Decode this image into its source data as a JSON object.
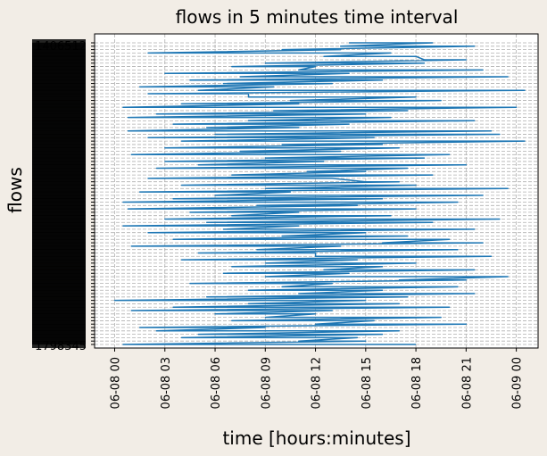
{
  "figure": {
    "background": "#f2ede6",
    "axes_background": "#ffffff"
  },
  "chart_data": {
    "type": "line",
    "title": "flows in 5 minutes time interval",
    "xlabel": "time [hours:minutes]",
    "ylabel": "flows",
    "x_tick_labels": [
      "06-08 00",
      "06-08 03",
      "06-08 06",
      "06-08 09",
      "06-08 12",
      "06-08 15",
      "06-08 18",
      "06-08 21",
      "06-09 00"
    ],
    "x_tick_hours": [
      0,
      3,
      6,
      9,
      12,
      15,
      18,
      21,
      24
    ],
    "xlim_hours": [
      -1.2,
      25.3
    ],
    "y_tick_labels_visible": [
      "1406512",
      "1798345"
    ],
    "y_flow_count": 90,
    "grid": true,
    "line_color": "#1f77b4",
    "series": [
      {
        "values": [
          [
            14.0,
            19.0
          ],
          [
            13.5,
            21.5
          ],
          [
            10.0,
            13.5
          ],
          [
            2.0,
            16.5
          ],
          [
            12.5,
            18.0
          ],
          [
            18.5,
            21.0
          ],
          [
            9.0,
            18.5
          ],
          [
            7.0,
            12.0
          ],
          [
            11.0,
            22.0
          ],
          [
            3.0,
            14.0
          ],
          [
            7.5,
            23.5
          ],
          [
            4.5,
            16.0
          ],
          [
            6.5,
            13.0
          ],
          [
            1.5,
            9.5
          ],
          [
            5.0,
            24.5
          ],
          [
            2.0,
            8.0
          ],
          [
            8.0,
            18.0
          ],
          [
            10.5,
            19.5
          ],
          [
            4.0,
            11.0
          ],
          [
            0.5,
            24.0
          ],
          [
            9.5,
            17.5
          ],
          [
            2.5,
            15.0
          ],
          [
            0.8,
            16.5
          ],
          [
            8.0,
            21.5
          ],
          [
            3.5,
            14.0
          ],
          [
            5.5,
            11.0
          ],
          [
            0.8,
            22.5
          ],
          [
            6.0,
            23.0
          ],
          [
            2.0,
            15.5
          ],
          [
            4.0,
            24.5
          ],
          [
            10.0,
            16.0
          ],
          [
            3.0,
            17.0
          ],
          [
            7.5,
            13.5
          ],
          [
            1.0,
            20.0
          ],
          [
            9.0,
            18.5
          ],
          [
            3.0,
            12.5
          ],
          [
            5.0,
            21.0
          ],
          [
            2.5,
            17.5
          ],
          [
            11.5,
            15.0
          ],
          [
            7.0,
            19.0
          ],
          [
            2.0,
            13.0
          ],
          [
            15.0,
            17.0
          ],
          [
            4.0,
            18.0
          ],
          [
            9.0,
            23.5
          ],
          [
            1.5,
            10.5
          ],
          [
            6.0,
            22.0
          ],
          [
            3.5,
            16.0
          ],
          [
            0.5,
            20.5
          ],
          [
            8.5,
            14.5
          ],
          [
            0.8,
            18.0
          ],
          [
            4.5,
            11.0
          ],
          [
            7.0,
            16.5
          ],
          [
            3.0,
            23.0
          ],
          [
            5.5,
            19.0
          ],
          [
            0.5,
            11.0
          ],
          [
            6.5,
            21.5
          ],
          [
            2.0,
            15.0
          ],
          [
            10.0,
            17.5
          ],
          [
            3.5,
            20.0
          ],
          [
            16.0,
            22.0
          ],
          [
            1.0,
            13.5
          ],
          [
            8.5,
            20.5
          ],
          [
            5.0,
            12.0
          ],
          [
            12.0,
            22.5
          ],
          [
            4.0,
            14.5
          ],
          [
            9.0,
            18.0
          ],
          [
            7.0,
            16.0
          ],
          [
            12.5,
            21.5
          ],
          [
            6.5,
            14.0
          ],
          [
            9.0,
            23.5
          ],
          [
            17.0,
            21.0
          ],
          [
            4.5,
            13.0
          ],
          [
            10.0,
            20.5
          ],
          [
            8.0,
            16.0
          ],
          [
            11.0,
            21.5
          ],
          [
            5.5,
            17.5
          ],
          [
            0.0,
            15.0
          ],
          [
            8.0,
            17.0
          ],
          [
            3.5,
            20.0
          ],
          [
            1.0,
            13.0
          ],
          [
            6.0,
            12.0
          ],
          [
            9.0,
            19.5
          ],
          [
            7.0,
            15.5
          ],
          [
            12.0,
            21.0
          ],
          [
            1.5,
            9.0
          ],
          [
            2.5,
            17.0
          ],
          [
            5.0,
            16.0
          ],
          [
            4.0,
            14.5
          ],
          [
            11.0,
            15.0
          ],
          [
            0.5,
            18.0
          ]
        ]
      }
    ]
  }
}
